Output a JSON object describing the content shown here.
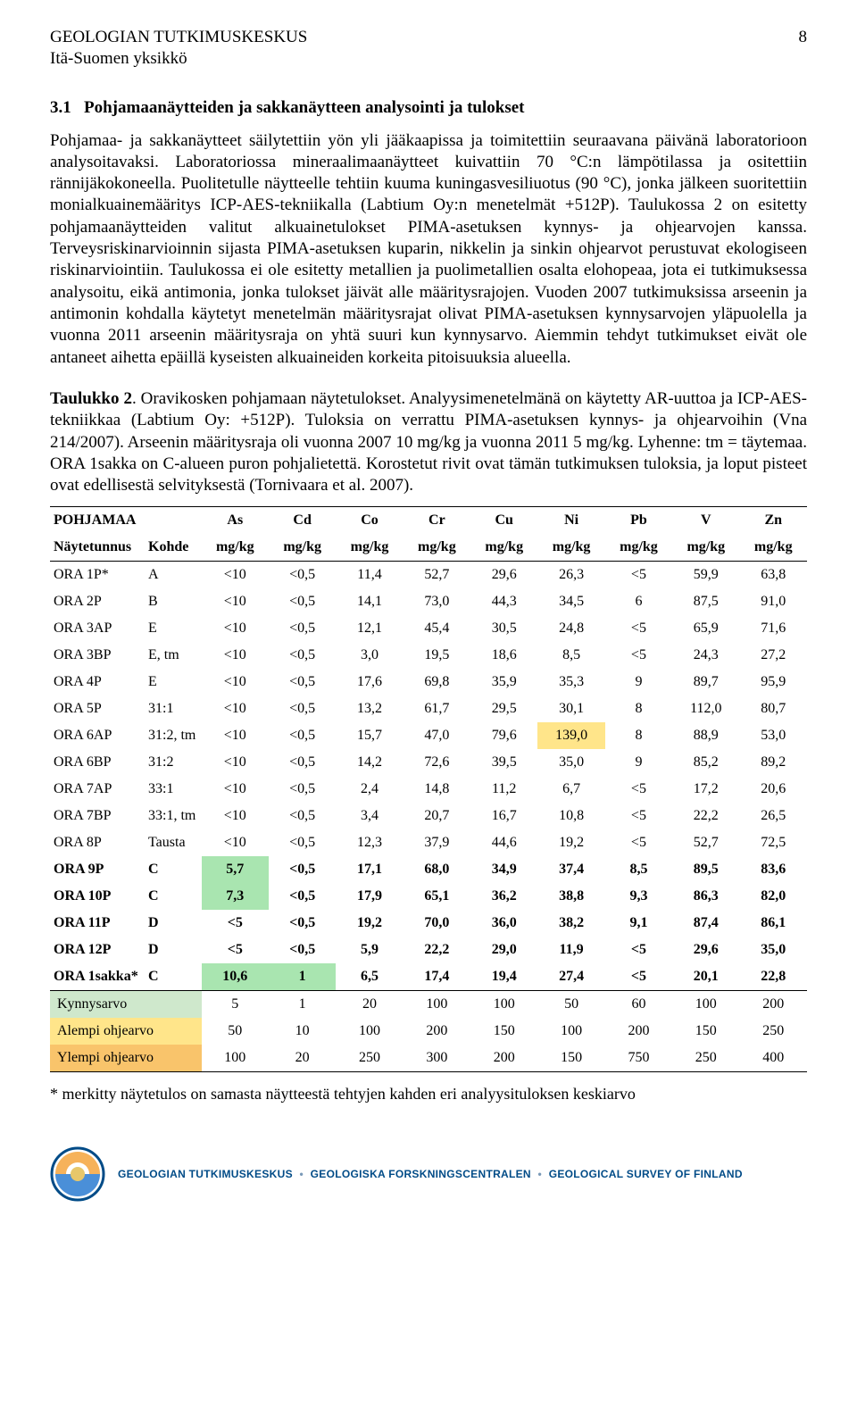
{
  "header": {
    "org_line1": "GEOLOGIAN TUTKIMUSKESKUS",
    "org_line2": "Itä-Suomen yksikkö",
    "page_number": "8"
  },
  "section": {
    "number": "3.1",
    "title": "Pohjamaanäytteiden ja sakkanäytteen analysointi ja tulokset"
  },
  "paragraphs": {
    "p1": "Pohjamaa- ja sakkanäytteet säilytettiin yön yli jääkaapissa ja toimitettiin seuraavana päivänä laboratorioon analysoitavaksi. Laboratoriossa mineraalimaanäytteet kuivattiin 70 °C:n lämpötilassa ja ositettiin rännijäkokoneella. Puolitetulle näytteelle tehtiin kuuma kuningasvesiliuotus (90 °C), jonka jälkeen suoritettiin monialkuainemääritys ICP-AES-tekniikalla (Labtium Oy:n menetelmät +512P). Taulukossa 2 on esitetty pohjamaanäytteiden valitut alkuainetulokset PIMA-asetuksen kynnys- ja ohjearvojen kanssa. Terveysriskinarvioinnin sijasta PIMA-asetuksen kuparin, nikkelin ja sinkin ohjearvot perustuvat ekologiseen riskinarviointiin. Taulukossa ei ole esitetty metallien ja puolimetallien osalta elohopeaa, jota ei tutkimuksessa analysoitu, eikä antimonia, jonka tulokset jäivät alle määritysrajojen. Vuoden 2007 tutkimuksissa arseenin ja antimonin kohdalla käytetyt menetelmän määritysrajat olivat PIMA-asetuksen kynnysarvojen yläpuolella ja vuonna 2011 arseenin määritysraja on yhtä suuri kun kynnysarvo. Aiemmin tehdyt tutkimukset eivät ole antaneet aihetta epäillä kyseisten alkuaineiden korkeita pitoisuuksia alueella."
  },
  "caption": {
    "title": "Taulukko 2",
    "text": ". Oravikosken pohjamaan näytetulokset. Analyysimenetelmänä on käytetty AR-uuttoa ja ICP-AES-tekniikkaa (Labtium Oy: +512P). Tuloksia on verrattu PIMA-asetuksen kynnys- ja ohjearvoihin (Vna 214/2007). Arseenin määritysraja oli vuonna 2007 10 mg/kg ja vuonna 2011 5 mg/kg. Lyhenne: tm = täytemaa. ORA 1sakka on C-alueen puron pohjalietettä. Korostetut rivit ovat tämän tutkimuksen tuloksia, ja loput pisteet ovat edellisestä selvityksestä (Tornivaara et al. 2007)."
  },
  "table": {
    "header1": [
      "POHJAMAA",
      "",
      "As",
      "Cd",
      "Co",
      "Cr",
      "Cu",
      "Ni",
      "Pb",
      "V",
      "Zn"
    ],
    "header2": [
      "Näytetunnus",
      "Kohde",
      "mg/kg",
      "mg/kg",
      "mg/kg",
      "mg/kg",
      "mg/kg",
      "mg/kg",
      "mg/kg",
      "mg/kg",
      "mg/kg"
    ],
    "rows": [
      {
        "cells": [
          "ORA 1P*",
          "A",
          "<10",
          "<0,5",
          "11,4",
          "52,7",
          "29,6",
          "26,3",
          "<5",
          "59,9",
          "63,8"
        ]
      },
      {
        "cells": [
          "ORA 2P",
          "B",
          "<10",
          "<0,5",
          "14,1",
          "73,0",
          "44,3",
          "34,5",
          "6",
          "87,5",
          "91,0"
        ]
      },
      {
        "cells": [
          "ORA 3AP",
          "E",
          "<10",
          "<0,5",
          "12,1",
          "45,4",
          "30,5",
          "24,8",
          "<5",
          "65,9",
          "71,6"
        ]
      },
      {
        "cells": [
          "ORA 3BP",
          "E, tm",
          "<10",
          "<0,5",
          "3,0",
          "19,5",
          "18,6",
          "8,5",
          "<5",
          "24,3",
          "27,2"
        ]
      },
      {
        "cells": [
          "ORA 4P",
          "E",
          "<10",
          "<0,5",
          "17,6",
          "69,8",
          "35,9",
          "35,3",
          "9",
          "89,7",
          "95,9"
        ]
      },
      {
        "cells": [
          "ORA 5P",
          "31:1",
          "<10",
          "<0,5",
          "13,2",
          "61,7",
          "29,5",
          "30,1",
          "8",
          "112,0",
          "80,7"
        ]
      },
      {
        "cells": [
          "ORA 6AP",
          "31:2, tm",
          "<10",
          "<0,5",
          "15,7",
          "47,0",
          "79,6",
          "139,0",
          "8",
          "88,9",
          "53,0"
        ],
        "highlight": {
          "7": "hl-yellow"
        }
      },
      {
        "cells": [
          "ORA 6BP",
          "31:2",
          "<10",
          "<0,5",
          "14,2",
          "72,6",
          "39,5",
          "35,0",
          "9",
          "85,2",
          "89,2"
        ]
      },
      {
        "cells": [
          "ORA 7AP",
          "33:1",
          "<10",
          "<0,5",
          "2,4",
          "14,8",
          "11,2",
          "6,7",
          "<5",
          "17,2",
          "20,6"
        ]
      },
      {
        "cells": [
          "ORA 7BP",
          "33:1, tm",
          "<10",
          "<0,5",
          "3,4",
          "20,7",
          "16,7",
          "10,8",
          "<5",
          "22,2",
          "26,5"
        ]
      },
      {
        "cells": [
          "ORA 8P",
          "Tausta",
          "<10",
          "<0,5",
          "12,3",
          "37,9",
          "44,6",
          "19,2",
          "<5",
          "52,7",
          "72,5"
        ]
      },
      {
        "cells": [
          "ORA 9P",
          "C",
          "5,7",
          "<0,5",
          "17,1",
          "68,0",
          "34,9",
          "37,4",
          "8,5",
          "89,5",
          "83,6"
        ],
        "bold": true,
        "highlight": {
          "2": "hl-green"
        }
      },
      {
        "cells": [
          "ORA 10P",
          "C",
          "7,3",
          "<0,5",
          "17,9",
          "65,1",
          "36,2",
          "38,8",
          "9,3",
          "86,3",
          "82,0"
        ],
        "bold": true,
        "highlight": {
          "2": "hl-green"
        }
      },
      {
        "cells": [
          "ORA 11P",
          "D",
          "<5",
          "<0,5",
          "19,2",
          "70,0",
          "36,0",
          "38,2",
          "9,1",
          "87,4",
          "86,1"
        ],
        "bold": true
      },
      {
        "cells": [
          "ORA 12P",
          "D",
          "<5",
          "<0,5",
          "5,9",
          "22,2",
          "29,0",
          "11,9",
          "<5",
          "29,6",
          "35,0"
        ],
        "bold": true
      },
      {
        "cells": [
          "ORA 1sakka*",
          "C",
          "10,6",
          "1",
          "6,5",
          "17,4",
          "19,4",
          "27,4",
          "<5",
          "20,1",
          "22,8"
        ],
        "bold": true,
        "highlight": {
          "2": "hl-green",
          "3": "hl-green"
        },
        "botrule": true
      }
    ],
    "threshold_rows": [
      {
        "cls": "row-kynnys",
        "label": "Kynnysarvo",
        "vals": [
          "5",
          "1",
          "20",
          "100",
          "100",
          "50",
          "60",
          "100",
          "200"
        ]
      },
      {
        "cls": "row-alempi",
        "label": "Alempi ohjearvo",
        "vals": [
          "50",
          "10",
          "100",
          "200",
          "150",
          "100",
          "200",
          "150",
          "250"
        ]
      },
      {
        "cls": "row-ylempi",
        "label": "Ylempi ohjearvo",
        "vals": [
          "100",
          "20",
          "250",
          "300",
          "200",
          "150",
          "750",
          "250",
          "400"
        ],
        "botrule": true
      }
    ]
  },
  "footnote": "* merkitty näytetulos on samasta näytteestä tehtyjen kahden eri analyysituloksen keskiarvo",
  "footer": {
    "fi": "GEOLOGIAN TUTKIMUSKESKUS",
    "sv": "GEOLOGISKA FORSKNINGSCENTRALEN",
    "en": "GEOLOGICAL SURVEY OF FINLAND"
  },
  "colors": {
    "hl_yellow": "#ffe58a",
    "hl_green": "#a9e5b0",
    "row_kynnys": "#cfe8cc",
    "row_alempi": "#ffe58a",
    "row_ylempi": "#f9c46b",
    "footer_text": "#004b87"
  }
}
